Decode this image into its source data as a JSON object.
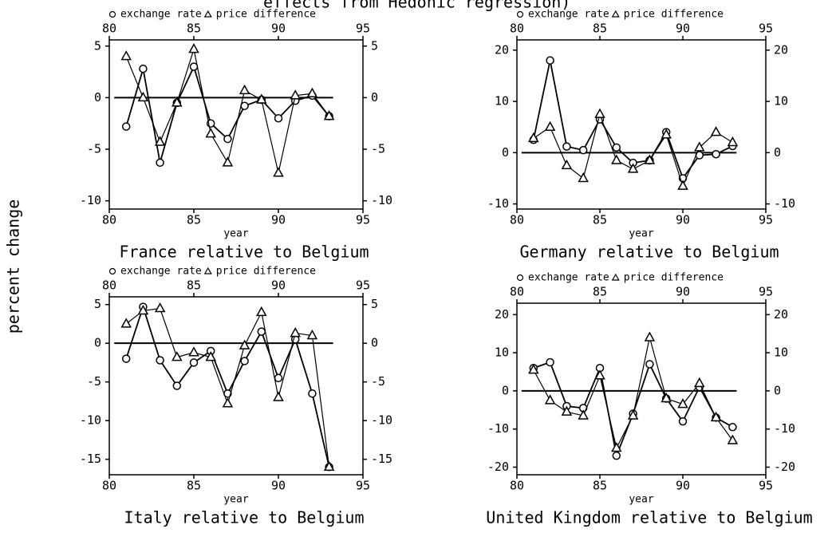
{
  "title": "effects from Hedonic regression)",
  "ylabel": "percent change",
  "chart_data": [
    {
      "type": "line",
      "title": "France relative to Belgium",
      "xlabel": "year",
      "x": [
        81,
        82,
        83,
        84,
        85,
        86,
        87,
        88,
        89,
        90,
        91,
        92,
        93
      ],
      "series": [
        {
          "name": "exchange rate",
          "color": "#000",
          "marker": "circle",
          "values": [
            -2.8,
            2.8,
            -6.3,
            -0.5,
            3.0,
            -2.5,
            -4.0,
            -0.8,
            -0.2,
            -2.0,
            -0.3,
            0.2,
            -1.8
          ]
        },
        {
          "name": "price difference",
          "color": "#000",
          "marker": "triangle",
          "values": [
            4.0,
            0.0,
            -4.3,
            -0.5,
            4.7,
            -3.5,
            -6.3,
            0.7,
            -0.2,
            -7.3,
            0.2,
            0.4,
            -1.8
          ]
        }
      ],
      "xlim": [
        80,
        95
      ],
      "xticks": [
        80,
        85,
        90,
        95
      ],
      "ylim": [
        -10.8,
        5.6
      ],
      "yticks": [
        -10,
        -5,
        0,
        5
      ],
      "hline": 0
    },
    {
      "type": "line",
      "title": "Germany relative to Belgium",
      "xlabel": "year",
      "x": [
        81,
        82,
        83,
        84,
        85,
        86,
        87,
        88,
        89,
        90,
        91,
        92,
        93
      ],
      "series": [
        {
          "name": "exchange rate",
          "color": "#000",
          "marker": "circle",
          "values": [
            2.5,
            18,
            1.2,
            0.5,
            6.5,
            1.0,
            -2.0,
            -1.5,
            4.0,
            -5.0,
            -0.5,
            -0.3,
            1.3
          ]
        },
        {
          "name": "price difference",
          "color": "#000",
          "marker": "triangle",
          "values": [
            2.8,
            5.0,
            -2.5,
            -5.0,
            7.5,
            -1.5,
            -3.2,
            -1.5,
            3.5,
            -6.5,
            1.0,
            4.0,
            2.0
          ]
        }
      ],
      "xlim": [
        80,
        95
      ],
      "xticks": [
        80,
        85,
        90,
        95
      ],
      "ylim": [
        -11,
        22
      ],
      "yticks": [
        -10,
        0,
        10,
        20
      ],
      "hline": 0
    },
    {
      "type": "line",
      "title": "Italy relative to Belgium",
      "xlabel": "year",
      "x": [
        81,
        82,
        83,
        84,
        85,
        86,
        87,
        88,
        89,
        90,
        91,
        92,
        93
      ],
      "series": [
        {
          "name": "exchange rate",
          "color": "#000",
          "marker": "circle",
          "values": [
            -2.0,
            4.7,
            -2.2,
            -5.5,
            -2.5,
            -1.0,
            -6.5,
            -2.3,
            1.5,
            -4.5,
            0.5,
            -6.5,
            -16
          ]
        },
        {
          "name": "price difference",
          "color": "#000",
          "marker": "triangle",
          "values": [
            2.5,
            4.2,
            4.5,
            -1.8,
            -1.2,
            -1.8,
            -7.8,
            -0.3,
            4.0,
            -7.0,
            1.3,
            1.0,
            -16
          ]
        }
      ],
      "xlim": [
        80,
        95
      ],
      "xticks": [
        80,
        85,
        90,
        95
      ],
      "ylim": [
        -17,
        6
      ],
      "yticks": [
        -15,
        -10,
        -5,
        0,
        5
      ],
      "hline": 0
    },
    {
      "type": "line",
      "title": "United Kingdom relative to Belgium",
      "xlabel": "year",
      "x": [
        81,
        82,
        83,
        84,
        85,
        86,
        87,
        88,
        89,
        90,
        91,
        92,
        93
      ],
      "series": [
        {
          "name": "exchange rate",
          "color": "#000",
          "marker": "circle",
          "values": [
            6,
            7.5,
            -4,
            -4.5,
            6,
            -17,
            -6,
            7,
            -2,
            -8,
            1,
            -7,
            -9.5
          ]
        },
        {
          "name": "price difference",
          "color": "#000",
          "marker": "triangle",
          "values": [
            5.5,
            -2.5,
            -5.5,
            -6.5,
            4,
            -15,
            -6.5,
            14,
            -2,
            -3.5,
            2,
            -7,
            -13
          ]
        }
      ],
      "xlim": [
        80,
        95
      ],
      "xticks": [
        80,
        85,
        90,
        95
      ],
      "ylim": [
        -22,
        23
      ],
      "yticks": [
        -20,
        -10,
        0,
        10,
        20
      ],
      "hline": 0
    }
  ]
}
